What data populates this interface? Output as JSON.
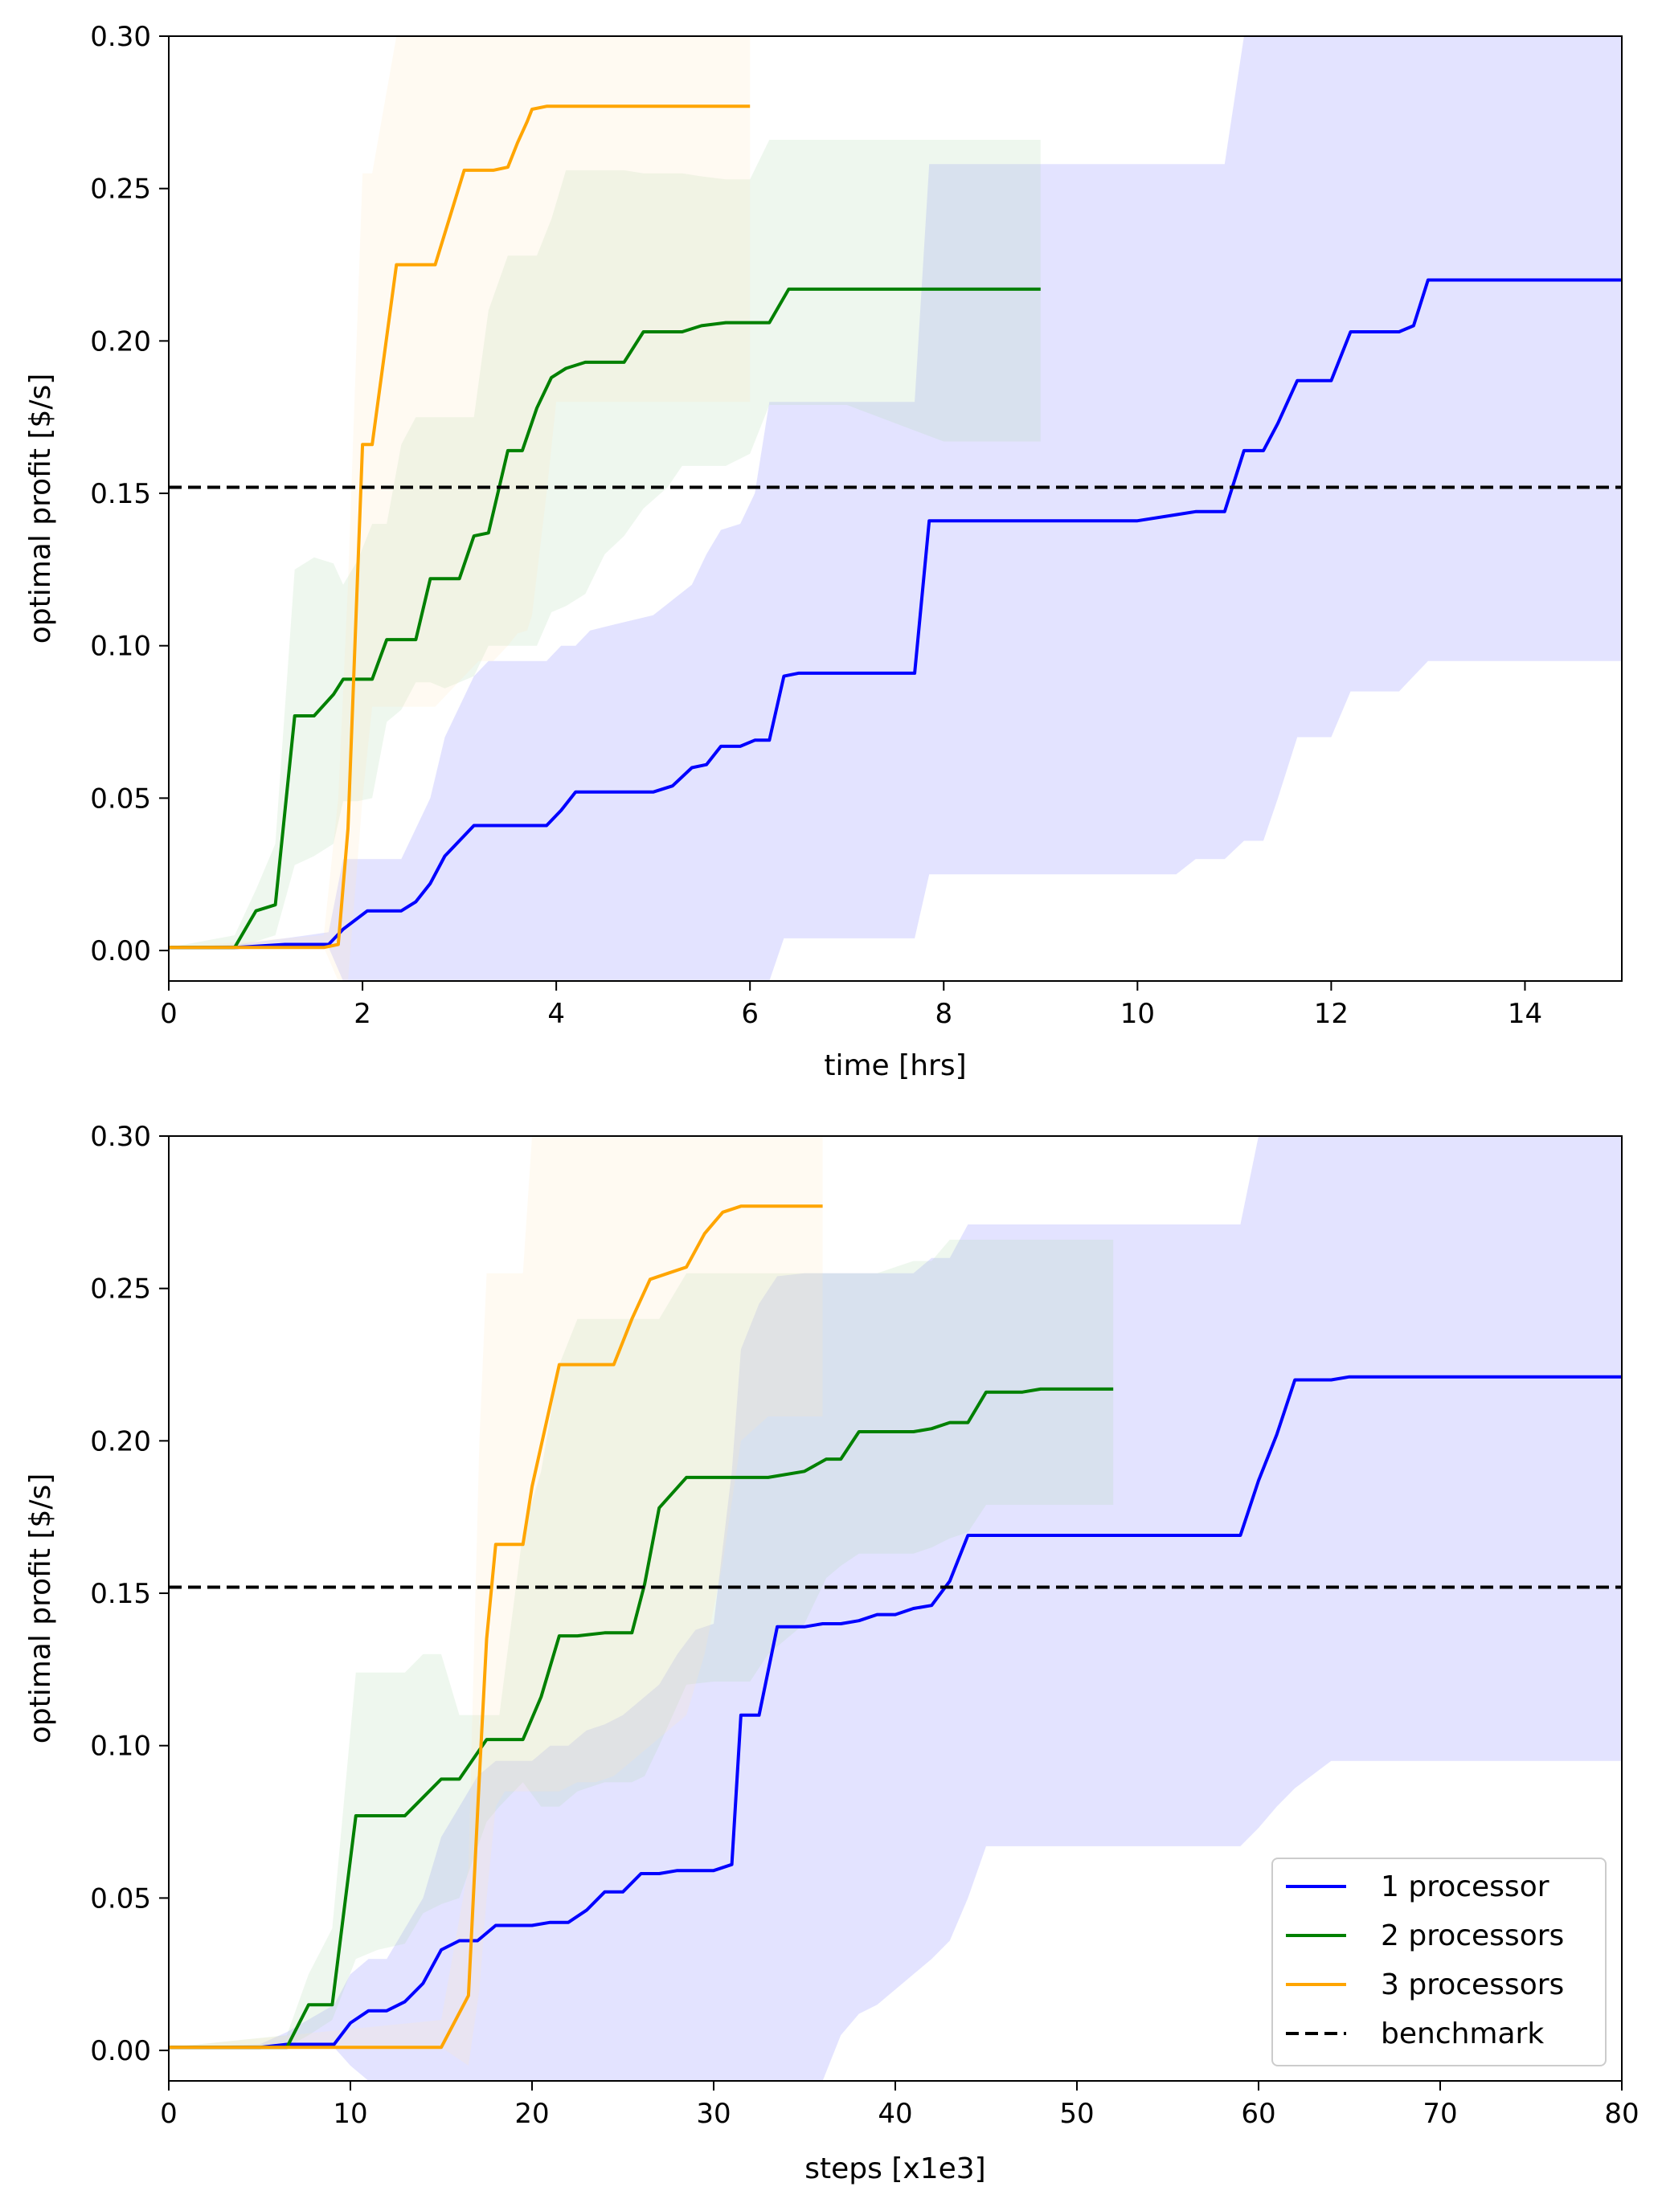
{
  "chart_data": [
    {
      "type": "line",
      "title": "",
      "xlabel": "time [hrs]",
      "ylabel": "optimal profit [$/s]",
      "xlim": [
        0,
        15
      ],
      "ylim": [
        -0.01,
        0.3
      ],
      "xticks": [
        0,
        2,
        4,
        6,
        8,
        10,
        12,
        14
      ],
      "xtick_labels": [
        "0",
        "2",
        "4",
        "6",
        "8",
        "10",
        "12",
        "14"
      ],
      "yticks": [
        0.0,
        0.05,
        0.1,
        0.15,
        0.2,
        0.25,
        0.3
      ],
      "ytick_labels": [
        "0.00",
        "0.05",
        "0.10",
        "0.15",
        "0.20",
        "0.25",
        "0.30"
      ],
      "grid": false,
      "benchmark": 0.152,
      "series": [
        {
          "name": "1 processor",
          "color": "#0000ff",
          "band_color": "#8080ff",
          "x": [
            0,
            0.7,
            1.2,
            1.65,
            1.8,
            2.05,
            2.4,
            2.55,
            2.7,
            2.85,
            3.0,
            3.15,
            3.3,
            3.5,
            3.9,
            4.05,
            4.2,
            4.35,
            4.6,
            5.0,
            5.2,
            5.4,
            5.55,
            5.7,
            5.9,
            6.05,
            6.2,
            6.35,
            6.5,
            6.65,
            7.0,
            7.3,
            7.7,
            7.85,
            8.0,
            9.0,
            10.0,
            10.4,
            10.6,
            10.9,
            11.1,
            11.3,
            11.45,
            11.65,
            11.8,
            12.0,
            12.2,
            12.4,
            12.7,
            12.85,
            13.0,
            13.3,
            14.0,
            15.0
          ],
          "y": [
            0.001,
            0.001,
            0.002,
            0.002,
            0.007,
            0.013,
            0.013,
            0.016,
            0.022,
            0.031,
            0.036,
            0.041,
            0.041,
            0.041,
            0.041,
            0.046,
            0.052,
            0.052,
            0.052,
            0.052,
            0.054,
            0.06,
            0.061,
            0.067,
            0.067,
            0.069,
            0.069,
            0.09,
            0.091,
            0.091,
            0.091,
            0.091,
            0.091,
            0.141,
            0.141,
            0.141,
            0.141,
            0.143,
            0.144,
            0.144,
            0.164,
            0.164,
            0.173,
            0.187,
            0.187,
            0.187,
            0.203,
            0.203,
            0.203,
            0.205,
            0.22,
            0.22,
            0.22,
            0.22
          ],
          "lower": [
            0.001,
            0.001,
            0.001,
            0.001,
            -0.01,
            -0.01,
            -0.01,
            -0.01,
            -0.01,
            -0.01,
            -0.01,
            -0.01,
            -0.01,
            -0.01,
            -0.01,
            -0.01,
            -0.01,
            -0.01,
            -0.01,
            -0.01,
            -0.01,
            -0.01,
            -0.01,
            -0.01,
            -0.01,
            -0.01,
            -0.01,
            0.004,
            0.004,
            0.004,
            0.004,
            0.004,
            0.004,
            0.025,
            0.025,
            0.025,
            0.025,
            0.025,
            0.03,
            0.03,
            0.036,
            0.036,
            0.05,
            0.07,
            0.07,
            0.07,
            0.085,
            0.085,
            0.085,
            0.09,
            0.095,
            0.095,
            0.095,
            0.095
          ],
          "upper": [
            0.001,
            0.002,
            0.004,
            0.006,
            0.03,
            0.03,
            0.03,
            0.04,
            0.05,
            0.07,
            0.08,
            0.09,
            0.095,
            0.095,
            0.095,
            0.1,
            0.1,
            0.105,
            0.107,
            0.11,
            0.115,
            0.12,
            0.13,
            0.138,
            0.14,
            0.15,
            0.18,
            0.18,
            0.18,
            0.18,
            0.18,
            0.18,
            0.18,
            0.258,
            0.258,
            0.258,
            0.258,
            0.258,
            0.258,
            0.258,
            0.3,
            0.3,
            0.3,
            0.3,
            0.3,
            0.3,
            0.3,
            0.3,
            0.3,
            0.3,
            0.3,
            0.3,
            0.3,
            0.3
          ]
        },
        {
          "name": "2 processors",
          "color": "#008000",
          "band_color": "#b3d9b3",
          "x": [
            0,
            0.68,
            0.9,
            1.1,
            1.3,
            1.5,
            1.7,
            1.8,
            1.95,
            2.1,
            2.25,
            2.4,
            2.55,
            2.7,
            2.85,
            3.0,
            3.15,
            3.3,
            3.5,
            3.65,
            3.8,
            3.95,
            4.1,
            4.3,
            4.5,
            4.7,
            4.9,
            5.15,
            5.3,
            5.5,
            5.75,
            6.0,
            6.2,
            6.4,
            6.6,
            7.0,
            8.0,
            9.0
          ],
          "y": [
            0.001,
            0.001,
            0.013,
            0.015,
            0.077,
            0.077,
            0.084,
            0.089,
            0.089,
            0.089,
            0.102,
            0.102,
            0.102,
            0.122,
            0.122,
            0.122,
            0.136,
            0.137,
            0.164,
            0.164,
            0.178,
            0.188,
            0.191,
            0.193,
            0.193,
            0.193,
            0.203,
            0.203,
            0.203,
            0.205,
            0.206,
            0.206,
            0.206,
            0.217,
            0.217,
            0.217,
            0.217,
            0.217
          ],
          "lower": [
            0.001,
            0.001,
            0.003,
            0.005,
            0.028,
            0.031,
            0.035,
            0.049,
            0.049,
            0.05,
            0.075,
            0.079,
            0.088,
            0.088,
            0.086,
            0.088,
            0.09,
            0.1,
            0.1,
            0.1,
            0.1,
            0.111,
            0.113,
            0.117,
            0.13,
            0.136,
            0.145,
            0.152,
            0.159,
            0.159,
            0.159,
            0.163,
            0.179,
            0.179,
            0.179,
            0.179,
            0.167,
            0.167
          ],
          "upper": [
            0.001,
            0.005,
            0.02,
            0.035,
            0.125,
            0.129,
            0.127,
            0.12,
            0.128,
            0.14,
            0.14,
            0.166,
            0.175,
            0.175,
            0.175,
            0.175,
            0.175,
            0.21,
            0.228,
            0.228,
            0.228,
            0.24,
            0.256,
            0.256,
            0.256,
            0.256,
            0.255,
            0.255,
            0.255,
            0.254,
            0.253,
            0.253,
            0.266,
            0.266,
            0.266,
            0.266,
            0.266,
            0.266
          ]
        },
        {
          "name": "3 processors",
          "color": "#ffa500",
          "band_color": "#fde8c3",
          "x": [
            0,
            1.6,
            1.75,
            1.85,
            2.0,
            2.1,
            2.35,
            2.55,
            2.75,
            3.05,
            3.2,
            3.35,
            3.5,
            3.6,
            3.7,
            3.75,
            3.9,
            4.0,
            6.0
          ],
          "y": [
            0.001,
            0.001,
            0.002,
            0.04,
            0.166,
            0.166,
            0.225,
            0.225,
            0.225,
            0.256,
            0.256,
            0.256,
            0.257,
            0.265,
            0.272,
            0.276,
            0.277,
            0.277,
            0.277
          ],
          "lower": [
            0.001,
            0.001,
            -0.01,
            -0.01,
            0.05,
            0.08,
            0.08,
            0.08,
            0.08,
            0.09,
            0.095,
            0.095,
            0.1,
            0.104,
            0.105,
            0.11,
            0.15,
            0.18,
            0.18
          ],
          "upper": [
            0.001,
            0.005,
            0.05,
            0.12,
            0.255,
            0.255,
            0.3,
            0.3,
            0.3,
            0.3,
            0.3,
            0.3,
            0.3,
            0.3,
            0.3,
            0.3,
            0.3,
            0.3,
            0.3
          ]
        }
      ]
    },
    {
      "type": "line",
      "title": "",
      "xlabel": "steps [x1e3]",
      "ylabel": "optimal profit [$/s]",
      "xlim": [
        0,
        80
      ],
      "ylim": [
        -0.01,
        0.3
      ],
      "xticks": [
        0,
        10,
        20,
        30,
        40,
        50,
        60,
        70,
        80
      ],
      "xtick_labels": [
        "0",
        "10",
        "20",
        "30",
        "40",
        "50",
        "60",
        "70",
        "80"
      ],
      "yticks": [
        0.0,
        0.05,
        0.1,
        0.15,
        0.2,
        0.25,
        0.3
      ],
      "ytick_labels": [
        "0.00",
        "0.05",
        "0.10",
        "0.15",
        "0.20",
        "0.25",
        "0.30"
      ],
      "grid": false,
      "benchmark": 0.152,
      "legend_position": "lower-right",
      "series": [
        {
          "name": "1 processor",
          "color": "#0000ff",
          "band_color": "#8080ff",
          "x": [
            0,
            5,
            6.5,
            9.1,
            10,
            11,
            12,
            13,
            14,
            15,
            16,
            17,
            18,
            19,
            20,
            21,
            22,
            23,
            24,
            25,
            26,
            27,
            28,
            29,
            30,
            31,
            31.5,
            32.5,
            33.5,
            35,
            36,
            37,
            38,
            39,
            40,
            41,
            42,
            43,
            44,
            45,
            50,
            55,
            59,
            60,
            61,
            62,
            64,
            65,
            70,
            80
          ],
          "y": [
            0.001,
            0.001,
            0.002,
            0.002,
            0.009,
            0.013,
            0.013,
            0.016,
            0.022,
            0.033,
            0.036,
            0.036,
            0.041,
            0.041,
            0.041,
            0.042,
            0.042,
            0.046,
            0.052,
            0.052,
            0.058,
            0.058,
            0.059,
            0.059,
            0.059,
            0.061,
            0.11,
            0.11,
            0.139,
            0.139,
            0.14,
            0.14,
            0.141,
            0.143,
            0.143,
            0.145,
            0.146,
            0.154,
            0.169,
            0.169,
            0.169,
            0.169,
            0.169,
            0.187,
            0.202,
            0.22,
            0.22,
            0.221,
            0.221,
            0.221
          ],
          "lower": [
            0.001,
            0.001,
            0.001,
            0.001,
            -0.005,
            -0.01,
            -0.01,
            -0.01,
            -0.01,
            -0.01,
            -0.01,
            -0.01,
            -0.01,
            -0.01,
            -0.01,
            -0.01,
            -0.01,
            -0.01,
            -0.01,
            -0.01,
            -0.01,
            -0.01,
            -0.01,
            -0.01,
            -0.01,
            -0.01,
            -0.01,
            -0.01,
            -0.01,
            -0.01,
            -0.01,
            0.005,
            0.012,
            0.015,
            0.02,
            0.025,
            0.03,
            0.036,
            0.05,
            0.067,
            0.067,
            0.067,
            0.067,
            0.073,
            0.08,
            0.086,
            0.095,
            0.095,
            0.095,
            0.095
          ],
          "upper": [
            0.001,
            0.002,
            0.006,
            0.015,
            0.025,
            0.03,
            0.03,
            0.04,
            0.05,
            0.07,
            0.08,
            0.09,
            0.095,
            0.095,
            0.095,
            0.1,
            0.1,
            0.105,
            0.107,
            0.11,
            0.115,
            0.12,
            0.13,
            0.138,
            0.14,
            0.19,
            0.23,
            0.245,
            0.254,
            0.255,
            0.255,
            0.255,
            0.255,
            0.255,
            0.255,
            0.255,
            0.26,
            0.26,
            0.271,
            0.271,
            0.271,
            0.271,
            0.271,
            0.3,
            0.3,
            0.3,
            0.3,
            0.3,
            0.3,
            0.3
          ]
        },
        {
          "name": "2 processors",
          "color": "#008000",
          "band_color": "#b3d9b3",
          "x": [
            0,
            6.5,
            7.7,
            9.0,
            10.3,
            11.5,
            13.0,
            14.0,
            15.0,
            16.0,
            17.5,
            18.2,
            19.5,
            20.5,
            21.5,
            22.5,
            24.0,
            25.5,
            26.2,
            27.0,
            28.5,
            30.0,
            31.0,
            32.0,
            33.0,
            35.0,
            36.2,
            37.0,
            38.0,
            39.0,
            41.0,
            42.0,
            43.0,
            44.0,
            45.0,
            46.0,
            47.0,
            48.0,
            52.0
          ],
          "y": [
            0.001,
            0.001,
            0.015,
            0.015,
            0.077,
            0.077,
            0.077,
            0.083,
            0.089,
            0.089,
            0.102,
            0.102,
            0.102,
            0.116,
            0.136,
            0.136,
            0.137,
            0.137,
            0.153,
            0.178,
            0.188,
            0.188,
            0.188,
            0.188,
            0.188,
            0.19,
            0.194,
            0.194,
            0.203,
            0.203,
            0.203,
            0.204,
            0.206,
            0.206,
            0.216,
            0.216,
            0.216,
            0.217,
            0.217
          ],
          "lower": [
            0.001,
            0.001,
            0.005,
            0.01,
            0.03,
            0.033,
            0.035,
            0.045,
            0.048,
            0.05,
            0.075,
            0.08,
            0.088,
            0.08,
            0.08,
            0.085,
            0.088,
            0.088,
            0.09,
            0.1,
            0.12,
            0.121,
            0.121,
            0.121,
            0.13,
            0.14,
            0.155,
            0.159,
            0.163,
            0.163,
            0.163,
            0.165,
            0.168,
            0.17,
            0.179,
            0.179,
            0.179,
            0.179,
            0.179
          ],
          "upper": [
            0.001,
            0.005,
            0.025,
            0.04,
            0.124,
            0.124,
            0.124,
            0.13,
            0.13,
            0.11,
            0.11,
            0.11,
            0.17,
            0.19,
            0.225,
            0.24,
            0.24,
            0.24,
            0.24,
            0.24,
            0.255,
            0.255,
            0.255,
            0.255,
            0.255,
            0.255,
            0.255,
            0.255,
            0.255,
            0.255,
            0.259,
            0.259,
            0.266,
            0.266,
            0.266,
            0.266,
            0.266,
            0.266,
            0.266
          ]
        },
        {
          "name": "3 processors",
          "color": "#ffa500",
          "band_color": "#fde8c3",
          "x": [
            0,
            15.0,
            16.5,
            17.1,
            17.5,
            18.0,
            18.5,
            19.5,
            20.0,
            21.5,
            22.5,
            23.5,
            24.5,
            25.5,
            26.5,
            27.5,
            28.5,
            29.5,
            30.5,
            31.5,
            33.0,
            36.0
          ],
          "y": [
            0.001,
            0.001,
            0.018,
            0.09,
            0.135,
            0.166,
            0.166,
            0.166,
            0.185,
            0.225,
            0.225,
            0.225,
            0.225,
            0.24,
            0.253,
            0.255,
            0.257,
            0.268,
            0.275,
            0.277,
            0.277,
            0.277
          ],
          "lower": [
            0.001,
            0.001,
            -0.005,
            0.02,
            0.05,
            0.08,
            0.085,
            0.085,
            0.085,
            0.085,
            0.088,
            0.088,
            0.09,
            0.095,
            0.1,
            0.105,
            0.11,
            0.13,
            0.16,
            0.2,
            0.208,
            0.208
          ],
          "upper": [
            0.001,
            0.01,
            0.06,
            0.2,
            0.255,
            0.255,
            0.255,
            0.255,
            0.3,
            0.3,
            0.3,
            0.3,
            0.3,
            0.3,
            0.3,
            0.3,
            0.3,
            0.3,
            0.3,
            0.3,
            0.3,
            0.3
          ]
        }
      ]
    }
  ],
  "legend": {
    "entries": [
      {
        "label": "1 processor",
        "color": "#0000ff",
        "style": "solid"
      },
      {
        "label": "2 processors",
        "color": "#008000",
        "style": "solid"
      },
      {
        "label": "3 processors",
        "color": "#ffa500",
        "style": "solid"
      },
      {
        "label": "benchmark",
        "color": "#000000",
        "style": "dashed"
      }
    ]
  }
}
